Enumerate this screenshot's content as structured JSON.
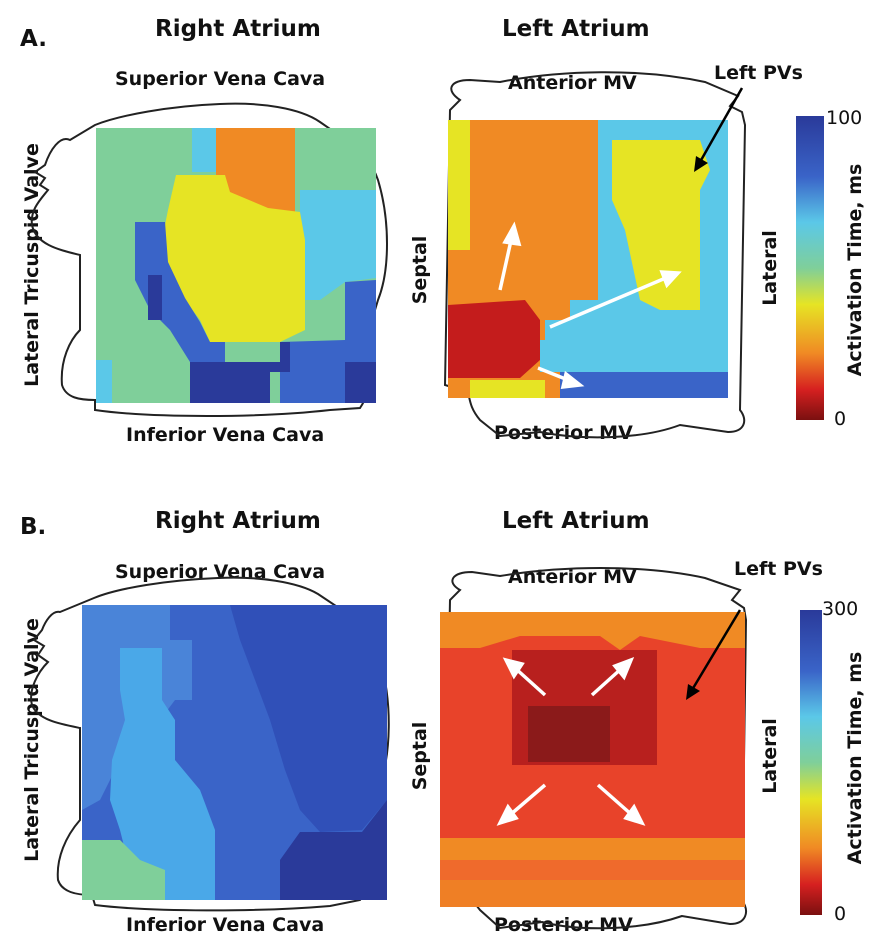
{
  "panels": [
    {
      "letter": "A.",
      "right_atrium": {
        "title": "Right Atrium",
        "top": "Superior Vena Cava",
        "bottom": "Inferior Vena Cava",
        "side": "Lateral Tricuspid Valve"
      },
      "left_atrium": {
        "title": "Left Atrium",
        "top": "Anterior MV",
        "bottom": "Posterior MV",
        "left": "Septal",
        "right": "Lateral",
        "pointer": "Left PVs"
      },
      "colorbar": {
        "max": "100",
        "min": "0",
        "label": "Activation Time, ms"
      }
    },
    {
      "letter": "B.",
      "right_atrium": {
        "title": "Right Atrium",
        "top": "Superior Vena Cava",
        "bottom": "Inferior Vena Cava",
        "side": "Lateral Tricuspid Valve"
      },
      "left_atrium": {
        "title": "Left Atrium",
        "top": "Anterior MV",
        "bottom": "Posterior MV",
        "left": "Septal",
        "right": "Lateral",
        "pointer": "Left PVs"
      },
      "colorbar": {
        "max": "300",
        "min": "0",
        "label": "Activation Time, ms"
      }
    }
  ],
  "colors": {
    "dark_red": "#8b1a1a",
    "red": "#d62020",
    "orange_red": "#e8432a",
    "orange": "#f08a24",
    "yellow": "#e6e424",
    "light_green": "#7fcf9a",
    "cyan": "#5bc8e8",
    "light_blue": "#4aa8e8",
    "blue": "#3a64c8",
    "navy": "#2a3a9a"
  }
}
